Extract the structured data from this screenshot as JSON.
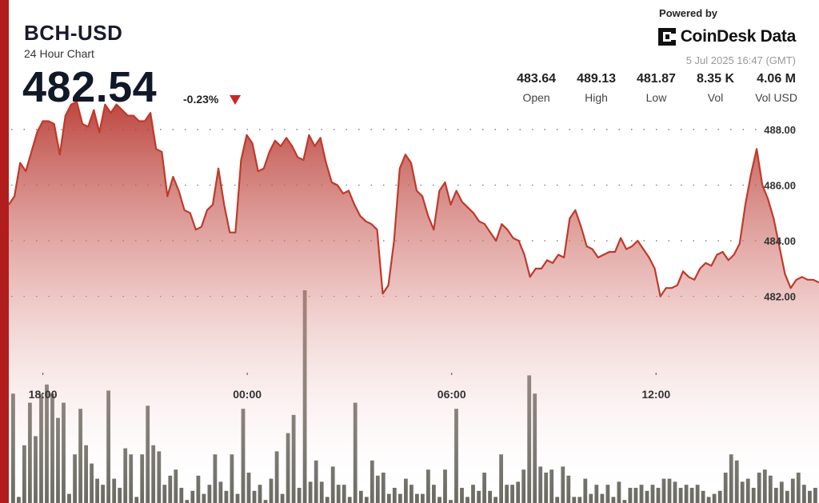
{
  "header": {
    "symbol": "BCH-USD",
    "subtitle": "24 Hour Chart",
    "price": "482.54",
    "change": "-0.23%"
  },
  "branding": {
    "powered_by": "Powered by",
    "name": "CoinDesk Data",
    "timestamp": "5 Jul 2025 16:47 (GMT)"
  },
  "stats": [
    {
      "value": "483.64",
      "label": "Open"
    },
    {
      "value": "489.13",
      "label": "High"
    },
    {
      "value": "481.87",
      "label": "Low"
    },
    {
      "value": "8.35 K",
      "label": "Vol"
    },
    {
      "value": "4.06 M",
      "label": "Vol USD"
    }
  ],
  "colors": {
    "accent": "#b11d1d",
    "line": "#c0392b",
    "fill_top": "#b5322a",
    "volume_bar": "#6b6b63",
    "down_arrow": "#c62828"
  },
  "chart_data": {
    "type": "area",
    "x_start": "17:00",
    "x_end": "16:47",
    "x_ticks": [
      "18:00",
      "00:00",
      "06:00",
      "12:00"
    ],
    "y_ticks": [
      "482.00",
      "484.00",
      "486.00",
      "488.00"
    ],
    "ylim": [
      479.0,
      490.5
    ],
    "grid": true,
    "y_values": [
      485.3,
      485.6,
      486.8,
      486.5,
      487.2,
      487.9,
      488.3,
      488.3,
      488.2,
      487.1,
      488.5,
      488.9,
      489.0,
      488.2,
      488.1,
      488.7,
      487.9,
      488.9,
      488.6,
      488.9,
      488.7,
      488.5,
      488.5,
      488.3,
      488.3,
      488.6,
      487.3,
      487.2,
      485.6,
      486.3,
      485.8,
      485.1,
      485.0,
      484.4,
      484.5,
      485.1,
      485.3,
      486.6,
      485.3,
      484.3,
      484.3,
      486.9,
      487.8,
      487.5,
      486.5,
      486.6,
      487.2,
      487.6,
      487.4,
      487.7,
      487.4,
      487.0,
      486.9,
      487.8,
      487.4,
      487.7,
      486.8,
      486.1,
      486.0,
      485.7,
      485.8,
      485.3,
      484.9,
      484.7,
      484.6,
      484.4,
      482.1,
      482.4,
      484.0,
      486.6,
      487.1,
      486.8,
      485.8,
      485.6,
      484.9,
      484.4,
      485.8,
      486.1,
      485.3,
      485.8,
      485.4,
      485.2,
      485.0,
      484.7,
      484.6,
      484.3,
      484.0,
      484.6,
      484.4,
      484.1,
      484.0,
      483.5,
      482.7,
      483.0,
      483.0,
      483.3,
      483.2,
      483.5,
      483.4,
      484.8,
      485.1,
      484.5,
      483.8,
      483.7,
      483.4,
      483.5,
      483.6,
      483.6,
      484.1,
      483.7,
      483.8,
      484.0,
      483.7,
      483.4,
      483.0,
      482.0,
      482.3,
      482.3,
      482.4,
      482.9,
      482.7,
      482.6,
      483.0,
      483.2,
      483.1,
      483.5,
      483.6,
      483.3,
      483.5,
      483.9,
      485.3,
      486.4,
      487.3,
      486.0,
      485.5,
      484.8,
      483.8,
      482.8,
      482.3,
      482.6,
      482.7,
      482.6,
      482.6,
      482.5
    ],
    "volume_values": [
      0.36,
      0.02,
      0.19,
      0.33,
      0.22,
      0.36,
      0.39,
      0.36,
      0.28,
      0.33,
      0.03,
      0.16,
      0.31,
      0.19,
      0.13,
      0.08,
      0.06,
      0.37,
      0.08,
      0.05,
      0.18,
      0.16,
      0.02,
      0.16,
      0.32,
      0.19,
      0.17,
      0.06,
      0.09,
      0.11,
      0.05,
      0.01,
      0.04,
      0.09,
      0.03,
      0.06,
      0.16,
      0.07,
      0.04,
      0.16,
      0.03,
      0.31,
      0.1,
      0.04,
      0.06,
      0.01,
      0.08,
      0.17,
      0.03,
      0.23,
      0.29,
      0.05,
      0.7,
      0.07,
      0.14,
      0.07,
      0.02,
      0.12,
      0.06,
      0.06,
      0.02,
      0.33,
      0.04,
      0.02,
      0.14,
      0.09,
      0.1,
      0.03,
      0.05,
      0.03,
      0.08,
      0.06,
      0.03,
      0.03,
      0.11,
      0.06,
      0.02,
      0.11,
      0.01,
      0.31,
      0.05,
      0.02,
      0.06,
      0.04,
      0.1,
      0.04,
      0.02,
      0.16,
      0.06,
      0.06,
      0.07,
      0.11,
      0.42,
      0.36,
      0.12,
      0.1,
      0.11,
      0.02,
      0.12,
      0.09,
      0.02,
      0.02,
      0.08,
      0.03,
      0.06,
      0.03,
      0.06,
      0.02,
      0.07,
      0.01,
      0.05,
      0.05,
      0.06,
      0.04,
      0.06,
      0.05,
      0.08,
      0.08,
      0.07,
      0.05,
      0.06,
      0.05,
      0.06,
      0.04,
      0.02,
      0.03,
      0.04,
      0.1,
      0.16,
      0.14,
      0.07,
      0.08,
      0.05,
      0.1,
      0.11,
      0.09,
      0.05,
      0.07,
      0.04,
      0.08,
      0.1,
      0.06,
      0.04,
      0.05
    ]
  }
}
